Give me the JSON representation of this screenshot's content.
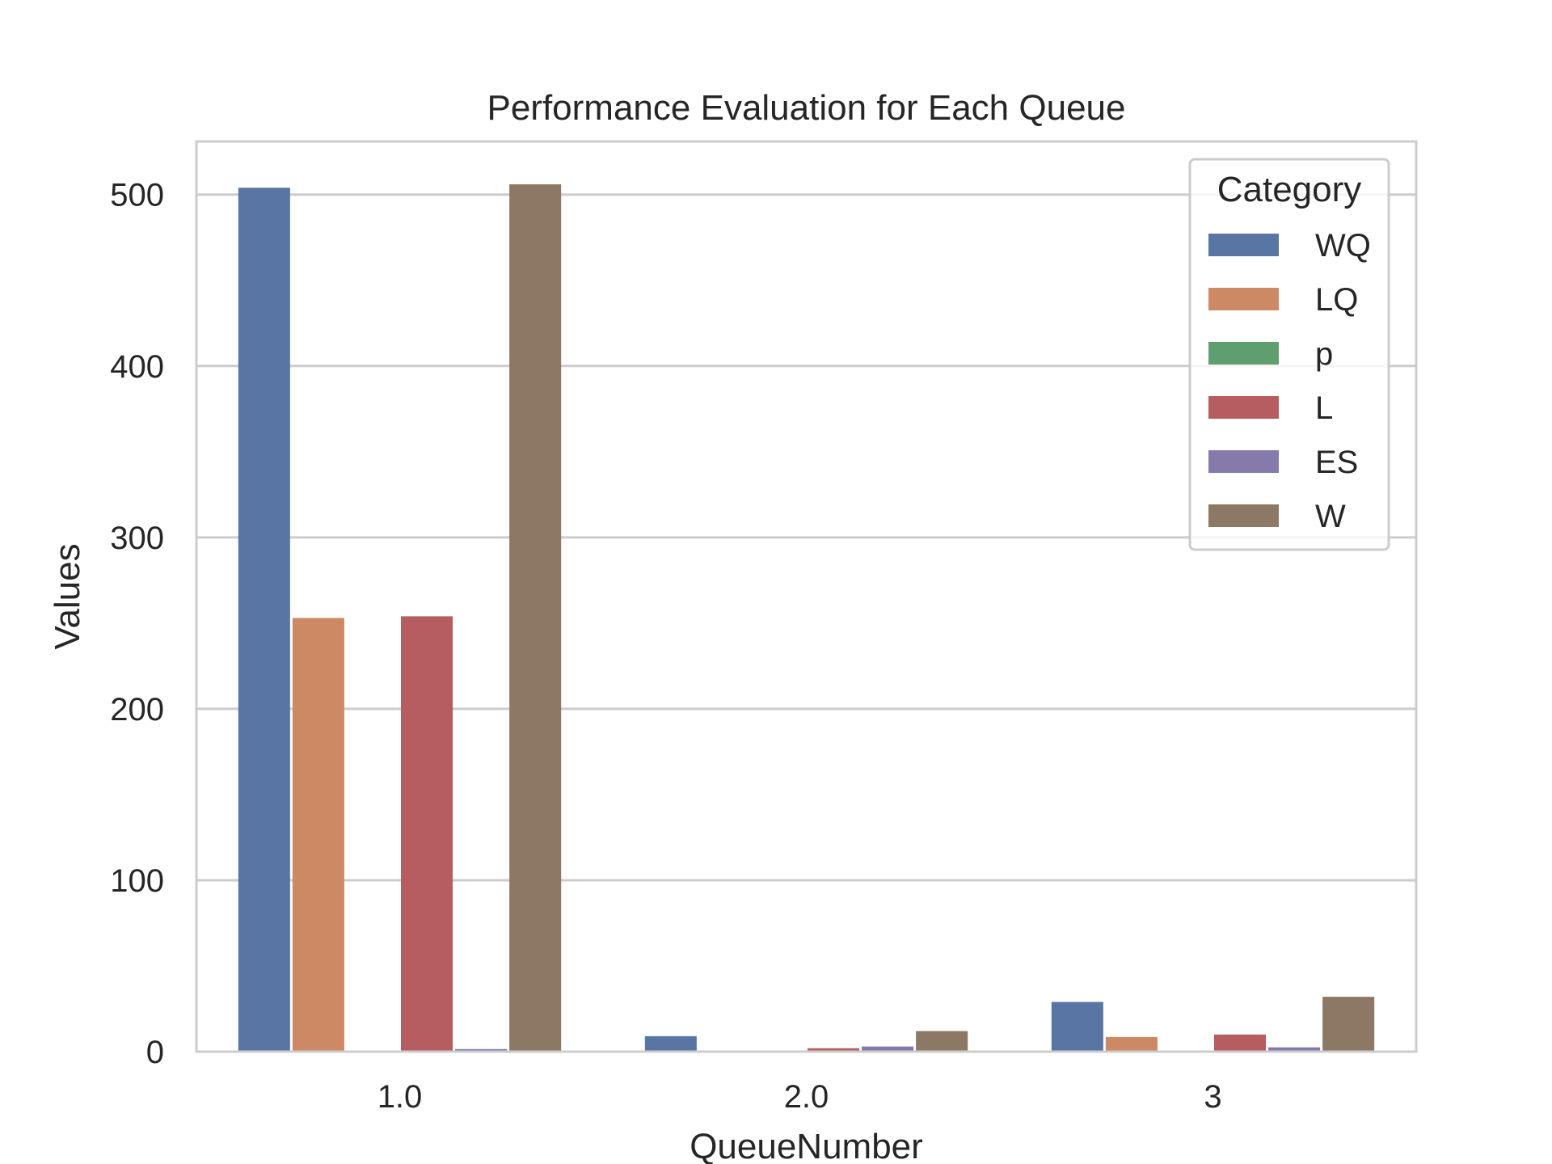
{
  "chart_data": {
    "type": "bar",
    "title": "Performance Evaluation for Each Queue",
    "xlabel": "QueueNumber",
    "ylabel": "Values",
    "categories": [
      "1.0",
      "2.0",
      "3"
    ],
    "ylim": [
      0,
      531
    ],
    "yticks": [
      0,
      100,
      200,
      300,
      400,
      500
    ],
    "grid": true,
    "legend": {
      "title": "Category",
      "placement": "top-right"
    },
    "series": [
      {
        "name": "WQ",
        "color": "#5975a4",
        "values": [
          504,
          9,
          29
        ]
      },
      {
        "name": "LQ",
        "color": "#cc8963",
        "values": [
          253,
          0,
          8.5
        ]
      },
      {
        "name": "p",
        "color": "#5f9e6e",
        "values": [
          0.5,
          0.3,
          0.7
        ]
      },
      {
        "name": "L",
        "color": "#b55d60",
        "values": [
          254,
          2,
          10
        ]
      },
      {
        "name": "ES",
        "color": "#857aab",
        "values": [
          1.5,
          3,
          2.5
        ]
      },
      {
        "name": "W",
        "color": "#8d7866",
        "values": [
          506,
          12,
          32
        ]
      }
    ]
  }
}
